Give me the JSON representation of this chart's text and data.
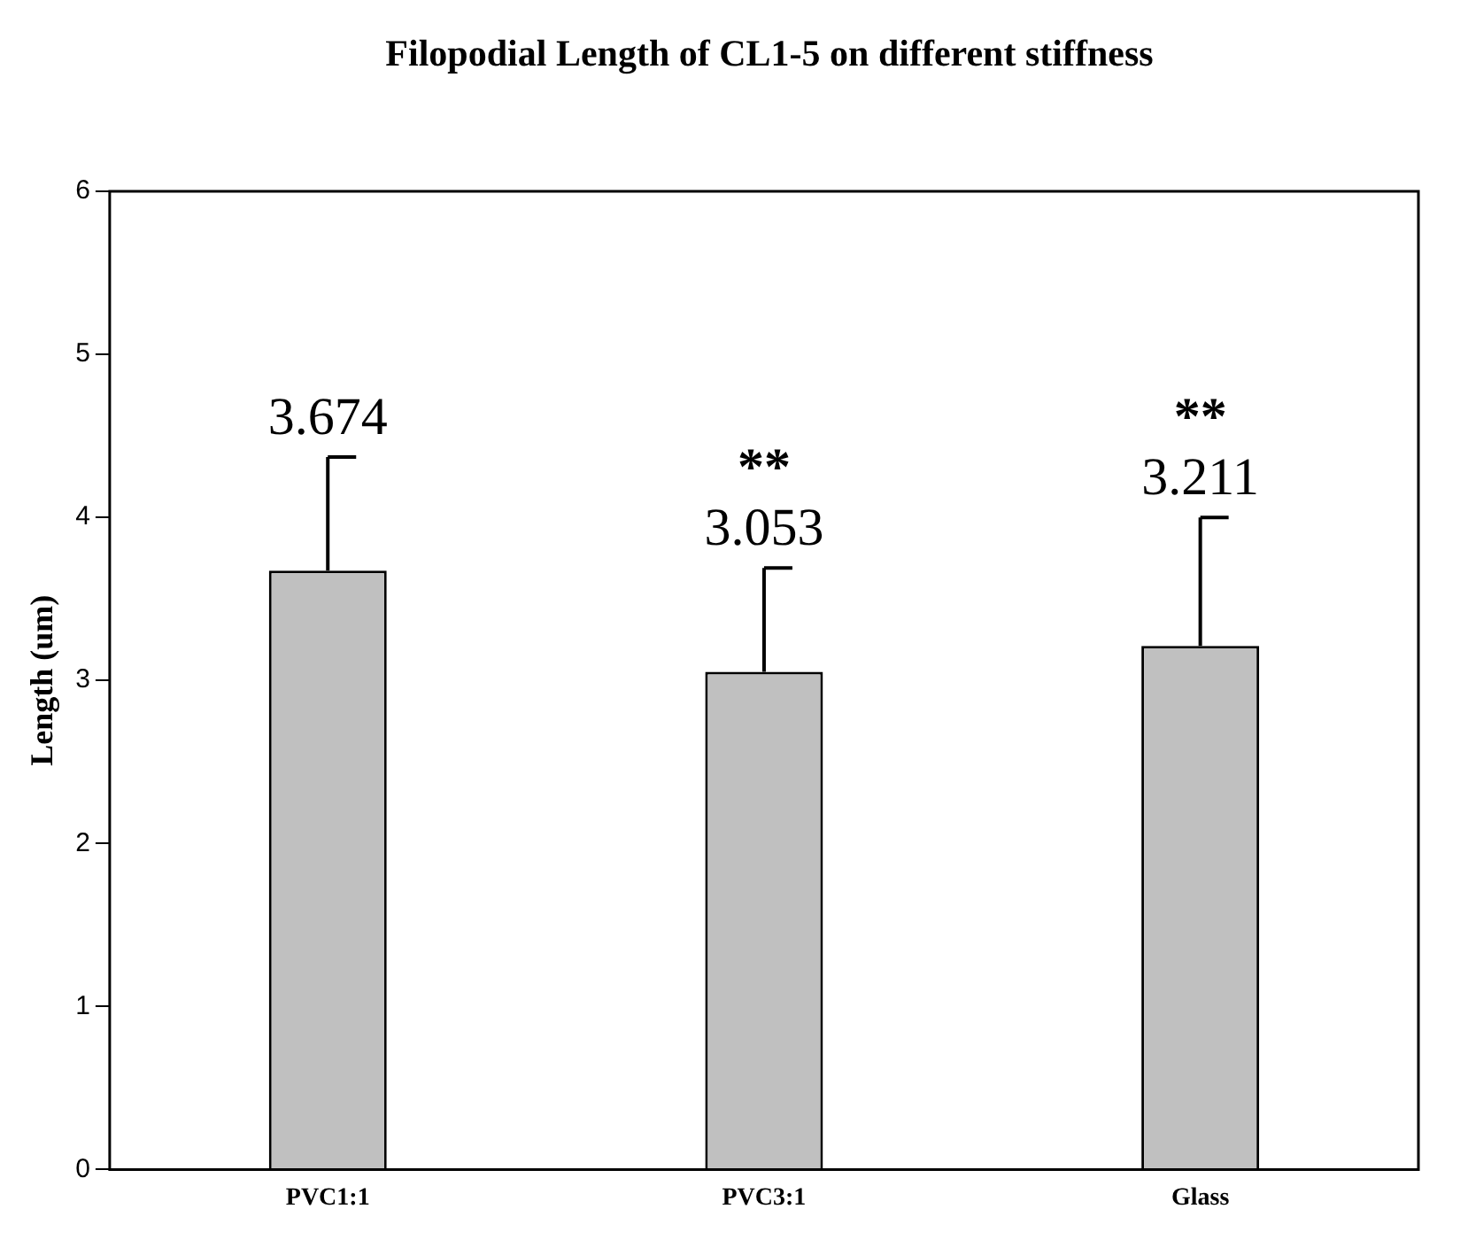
{
  "chart_data": {
    "type": "bar",
    "title": "Filopodial Length of CL1-5 on different stiffness",
    "ylabel": "Length (um)",
    "categories": [
      "PVC1:1",
      "PVC3:1",
      "Glass"
    ],
    "values": [
      3.674,
      3.053,
      3.211
    ],
    "color": "#c0c0c0",
    "errors": [
      [
        3.674,
        4.37
      ],
      [
        3.053,
        3.69
      ],
      [
        3.211,
        4.0
      ]
    ],
    "data_labels": true,
    "annotations": [
      "**",
      "**"
    ],
    "ylim": [
      0,
      6
    ],
    "yticks": [
      0,
      1,
      2,
      3,
      4,
      5,
      6
    ],
    "grid": false,
    "legend": false
  }
}
